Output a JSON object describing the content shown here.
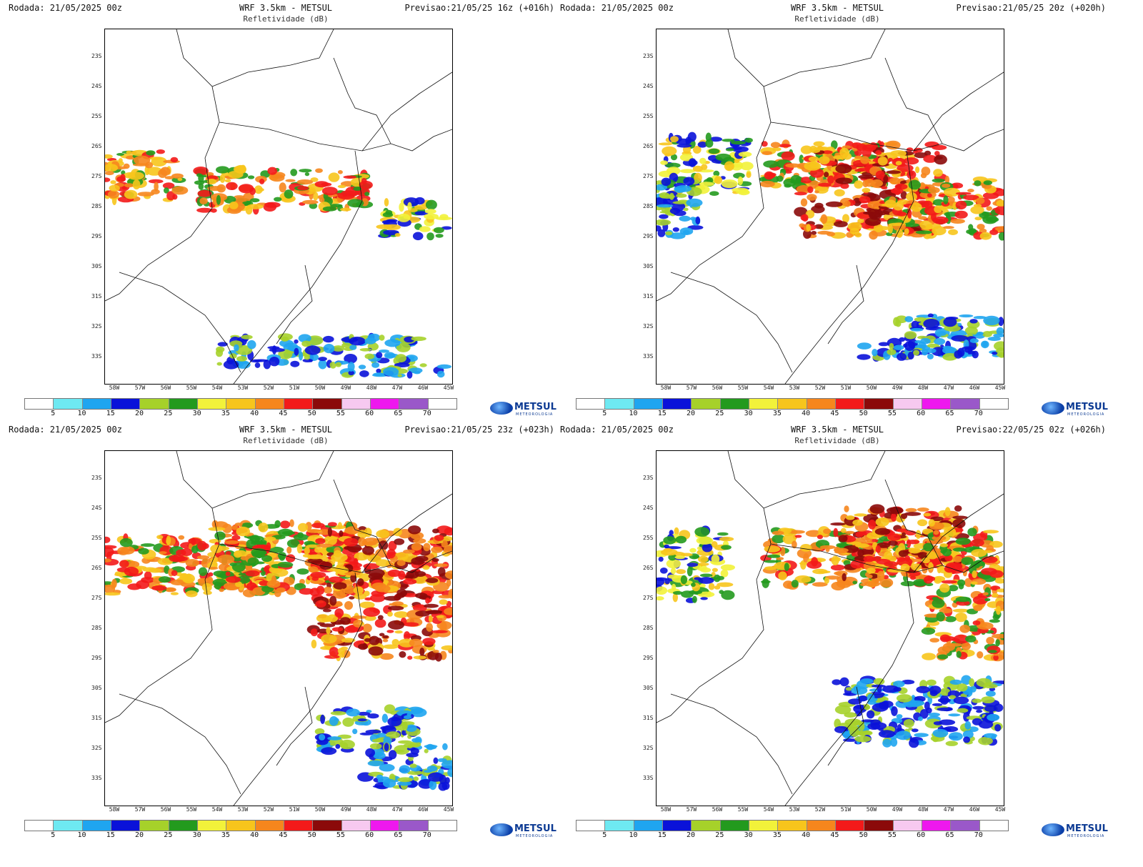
{
  "common": {
    "title": "WRF 3.5km - METSUL",
    "subtitle": "Refletividade (dB)",
    "lat_labels": [
      "23S",
      "24S",
      "25S",
      "26S",
      "27S",
      "28S",
      "29S",
      "30S",
      "31S",
      "32S",
      "33S"
    ],
    "lon_labels": [
      "58W",
      "57W",
      "56W",
      "55W",
      "54W",
      "53W",
      "52W",
      "51W",
      "50W",
      "49W",
      "48W",
      "47W",
      "46W",
      "45W"
    ],
    "colorbar_labels": [
      "5",
      "10",
      "15",
      "20",
      "25",
      "30",
      "35",
      "40",
      "45",
      "50",
      "55",
      "60",
      "65",
      "70"
    ],
    "colorbar_colors": [
      "#ffffff",
      "#6ee9f2",
      "#1fa5f0",
      "#0a12d9",
      "#a6d12a",
      "#239a1e",
      "#f2f23a",
      "#f7c51c",
      "#f6861d",
      "#f31a1a",
      "#8b0a0a",
      "#f7c9f0",
      "#ee18ee",
      "#9a58c9",
      "#ffffff"
    ],
    "logo_text": "METSUL",
    "logo_subtext": "METEOROLOGIA"
  },
  "panels": [
    {
      "rodada": "Rodada: 21/05/2025 00z",
      "previsao": "Previsao:21/05/25 16z (+016h)"
    },
    {
      "rodada": "Rodada: 21/05/2025 00z",
      "previsao": "Previsao:21/05/25 20z (+020h)"
    },
    {
      "rodada": "Rodada: 21/05/2025 00z",
      "previsao": "Previsao:21/05/25 23z (+023h)"
    },
    {
      "rodada": "Rodada: 21/05/2025 00z",
      "previsao": "Previsao:22/05/25 02z (+026h)"
    }
  ]
}
